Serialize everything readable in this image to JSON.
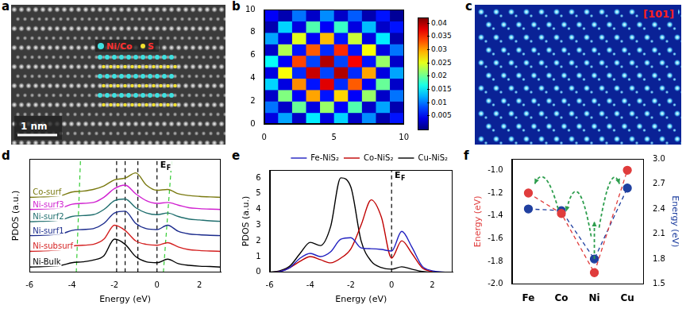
{
  "images": [
    {
      "panel": "a",
      "labels": [
        "Ni/Co",
        "S"
      ],
      "scale_bar": "1 nm"
    },
    {
      "panel": "c",
      "label": "[101]"
    }
  ],
  "chart_data": [
    {
      "panel": "b",
      "type": "heatmap",
      "grid": false,
      "x_edges": [
        0,
        1,
        2,
        3,
        4,
        5,
        6,
        7,
        8,
        9,
        10
      ],
      "y_edges": [
        0,
        1,
        2,
        3,
        4,
        5,
        6,
        7,
        8,
        9,
        10
      ],
      "xlim": [
        0,
        10
      ],
      "ylim": [
        0,
        10
      ],
      "xticks": [
        0,
        5,
        10
      ],
      "yticks": [
        0,
        2,
        4,
        6,
        8,
        10
      ],
      "z": [
        [
          0.004,
          0.012,
          0.003,
          0.015,
          0.004,
          0.014,
          0.003,
          0.011,
          0.002,
          0.006
        ],
        [
          0.01,
          0.003,
          0.02,
          0.004,
          0.022,
          0.005,
          0.019,
          0.003,
          0.012,
          0.002
        ],
        [
          0.003,
          0.021,
          0.005,
          0.03,
          0.006,
          0.028,
          0.005,
          0.022,
          0.003,
          0.01
        ],
        [
          0.014,
          0.004,
          0.031,
          0.006,
          0.038,
          0.007,
          0.033,
          0.005,
          0.02,
          0.003
        ],
        [
          0.004,
          0.026,
          0.007,
          0.039,
          0.008,
          0.04,
          0.007,
          0.03,
          0.004,
          0.012
        ],
        [
          0.016,
          0.005,
          0.034,
          0.008,
          0.04,
          0.008,
          0.037,
          0.006,
          0.022,
          0.003
        ],
        [
          0.003,
          0.023,
          0.006,
          0.033,
          0.007,
          0.035,
          0.006,
          0.026,
          0.004,
          0.01
        ],
        [
          0.012,
          0.004,
          0.025,
          0.005,
          0.029,
          0.006,
          0.024,
          0.004,
          0.015,
          0.002
        ],
        [
          0.002,
          0.014,
          0.004,
          0.019,
          0.005,
          0.018,
          0.004,
          0.013,
          0.003,
          0.006
        ],
        [
          0.005,
          0.002,
          0.01,
          0.003,
          0.011,
          0.003,
          0.009,
          0.002,
          0.006,
          0.001
        ]
      ],
      "colorbar": {
        "range": [
          0,
          0.042
        ],
        "ticks": [
          0.005,
          0.01,
          0.015,
          0.02,
          0.025,
          0.03,
          0.035,
          0.04
        ]
      }
    },
    {
      "panel": "d",
      "type": "line",
      "grid": false,
      "tick_labels": "x",
      "xlabel": "Energy (eV)",
      "ylabel": "PDOS (a.u.)",
      "x": [
        -6,
        -5.5,
        -5,
        -4.5,
        -4,
        -3.5,
        -3,
        -2.5,
        -2,
        -1.5,
        -1,
        -0.5,
        0,
        0.5,
        1,
        1.5,
        2,
        2.5,
        3
      ],
      "xlim": [
        -6,
        3
      ],
      "xticks": [
        -6,
        -4,
        -2,
        0,
        2
      ],
      "ylim": [
        0,
        6.5
      ],
      "series": [
        {
          "name": "Ni-Bulk",
          "color": "#000000",
          "values": [
            0.3,
            0.32,
            0.35,
            0.4,
            0.55,
            0.6,
            0.7,
            0.95,
            1.9,
            1.6,
            0.9,
            0.6,
            0.55,
            0.75,
            0.5,
            0.4,
            0.35,
            0.33,
            0.3
          ]
        },
        {
          "name": "Ni-subsurf",
          "color": "#d42020",
          "values": [
            1.2,
            1.22,
            1.25,
            1.3,
            1.5,
            1.55,
            1.6,
            1.9,
            2.7,
            2.4,
            1.8,
            1.6,
            1.55,
            1.7,
            1.45,
            1.3,
            1.25,
            1.22,
            1.2
          ]
        },
        {
          "name": "Ni-surf1",
          "color": "#1a2a8c",
          "values": [
            2.1,
            2.12,
            2.15,
            2.2,
            2.4,
            2.45,
            2.5,
            2.8,
            3.4,
            3.5,
            2.8,
            2.5,
            2.45,
            2.7,
            2.35,
            2.2,
            2.15,
            2.12,
            2.1
          ]
        },
        {
          "name": "Ni-surf2",
          "color": "#1f6e6e",
          "values": [
            2.9,
            2.92,
            2.95,
            3.0,
            3.2,
            3.25,
            3.3,
            3.6,
            4.1,
            4.2,
            3.7,
            3.4,
            3.3,
            3.4,
            3.2,
            3.05,
            3.0,
            2.95,
            2.92
          ]
        },
        {
          "name": "Ni-surf3",
          "color": "#d020d0",
          "values": [
            3.6,
            3.62,
            3.65,
            3.7,
            3.9,
            3.95,
            4.0,
            4.3,
            4.8,
            5.0,
            4.5,
            4.1,
            3.95,
            4.0,
            3.85,
            3.7,
            3.65,
            3.62,
            3.6
          ]
        },
        {
          "name": "Co-surf",
          "color": "#7a7a10",
          "values": [
            4.3,
            4.32,
            4.35,
            4.4,
            4.6,
            4.65,
            4.75,
            4.95,
            5.3,
            5.4,
            5.7,
            5.0,
            4.7,
            4.75,
            4.5,
            4.4,
            4.35,
            4.32,
            4.3
          ]
        }
      ],
      "reference_lines": [
        {
          "x": [
            -1.9,
            -1.9
          ],
          "color": "#000000",
          "line_style": "dashed"
        },
        {
          "x": [
            -1.5,
            -1.5
          ],
          "color": "#000000",
          "line_style": "dashed"
        },
        {
          "x": [
            -0.9,
            -0.9
          ],
          "color": "#000000",
          "line_style": "dashed"
        },
        {
          "x": [
            0,
            0
          ],
          "color": "#000000",
          "line_style": "dashed"
        },
        {
          "x": [
            -3.8,
            -3.6
          ],
          "color": "#33cc33",
          "line_style": "dashed"
        },
        {
          "x": [
            0.3,
            0.7
          ],
          "color": "#33cc33",
          "line_style": "dashed"
        }
      ],
      "annotations": [
        {
          "text": "E",
          "subscript": "F",
          "x": 0.15,
          "y": 6.0
        }
      ]
    },
    {
      "panel": "e",
      "type": "line",
      "grid": false,
      "legend": "top",
      "xlabel": "Energy (eV)",
      "ylabel": "PDOS (a.u.)",
      "x": [
        -6,
        -5.5,
        -5,
        -4.5,
        -4,
        -3.5,
        -3,
        -2.5,
        -2,
        -1.5,
        -1,
        -0.5,
        0,
        0.5,
        1,
        1.5,
        2,
        2.5,
        3
      ],
      "xlim": [
        -6,
        3
      ],
      "xticks": [
        -6,
        -4,
        -2,
        0,
        2
      ],
      "ylim": [
        0,
        6.5
      ],
      "yticks": [
        0,
        1,
        2,
        3,
        4,
        5,
        6
      ],
      "series": [
        {
          "name": "Fe-NiS₂",
          "color": "#2020c0",
          "values": [
            0,
            0.05,
            0.3,
            0.9,
            1.2,
            1.0,
            1.3,
            2.1,
            2.2,
            1.55,
            1.5,
            1.45,
            1.35,
            2.6,
            1.6,
            0.4,
            0.1,
            0.02,
            0
          ]
        },
        {
          "name": "Co-NiS₂",
          "color": "#c00000",
          "values": [
            0,
            0.05,
            0.3,
            0.7,
            1.0,
            0.8,
            0.6,
            0.9,
            1.5,
            3.0,
            4.6,
            3.5,
            0.9,
            2.0,
            1.2,
            0.3,
            0.05,
            0,
            0
          ]
        },
        {
          "name": "Cu-NiS₂",
          "color": "#000000",
          "values": [
            0,
            0.1,
            0.4,
            1.2,
            1.9,
            1.7,
            2.9,
            6.0,
            5.4,
            2.0,
            0.7,
            0.3,
            0.2,
            0.35,
            0.2,
            0.05,
            0,
            0,
            0
          ]
        }
      ],
      "reference_lines": [
        {
          "x": [
            0,
            0
          ],
          "color": "#000000",
          "line_style": "dashed"
        }
      ],
      "annotations": [
        {
          "text": "E",
          "subscript": "F",
          "x": 0.15,
          "y": 6.0
        }
      ]
    },
    {
      "panel": "f",
      "type": "line",
      "grid": false,
      "categories": [
        "Fe",
        "Co",
        "Ni",
        "Cu"
      ],
      "ylabel": "Energy (eV)",
      "y2label": "Energy (eV)",
      "ylim": [
        -2.0,
        -0.9
      ],
      "yticks": [
        {
          "value": -2,
          "label": "-2.0"
        },
        -1.8,
        -1.6,
        -1.4,
        -1.2,
        {
          "value": -1,
          "label": "-1.0"
        }
      ],
      "y2lim": [
        1.5,
        3.0
      ],
      "y2ticks": [
        1.5,
        1.8,
        2.1,
        2.4,
        2.7,
        {
          "value": 3,
          "label": "3.0"
        }
      ],
      "series": [
        {
          "color": "#e03c3c",
          "marker": "circle",
          "line_style": "dashed",
          "values": [
            -1.2,
            -1.38,
            -1.9,
            -1.0
          ]
        },
        {
          "color": "#2040a0",
          "marker": "circle",
          "line_style": "dashed",
          "axis": "y2",
          "values": [
            2.4,
            2.38,
            1.8,
            2.65
          ]
        }
      ]
    }
  ]
}
